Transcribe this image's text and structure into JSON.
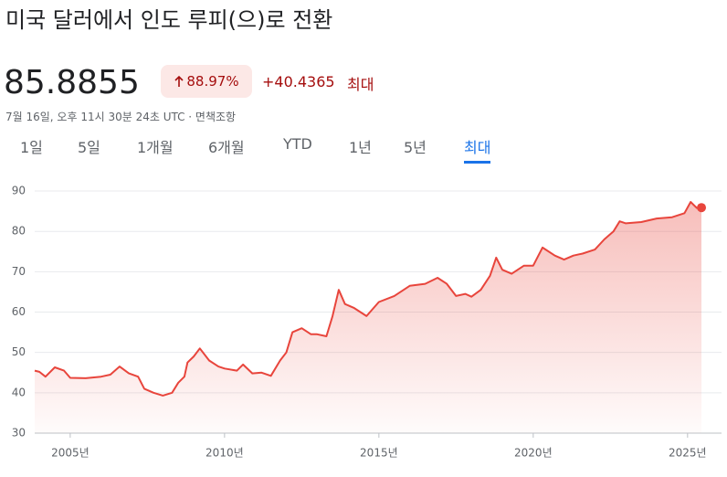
{
  "header": {
    "title": "미국 달러에서 인도 루피(으)로 전환",
    "price": "85.8855",
    "percent_change": "88.97%",
    "abs_change": "+40.4365",
    "range_label": "최대",
    "timestamp": "7월 16일, 오후 11시 30분 24초 UTC · 면책조항"
  },
  "tabs": [
    "1일",
    "5일",
    "1개월",
    "6개월",
    "YTD",
    "1년",
    "5년",
    "최대"
  ],
  "active_tab": 7,
  "chart_data": {
    "type": "area",
    "color": "#e8453c",
    "grid": true,
    "x": [
      2003.85,
      2004.0,
      2004.2,
      2004.5,
      2004.8,
      2005.0,
      2005.5,
      2006.0,
      2006.3,
      2006.6,
      2006.9,
      2007.2,
      2007.4,
      2007.7,
      2008.0,
      2008.3,
      2008.5,
      2008.7,
      2008.8,
      2009.0,
      2009.2,
      2009.5,
      2009.8,
      2010.0,
      2010.4,
      2010.6,
      2010.9,
      2011.2,
      2011.5,
      2011.8,
      2012.0,
      2012.2,
      2012.5,
      2012.8,
      2013.0,
      2013.3,
      2013.5,
      2013.7,
      2013.9,
      2014.2,
      2014.6,
      2015.0,
      2015.5,
      2016.0,
      2016.5,
      2016.9,
      2017.2,
      2017.5,
      2017.8,
      2018.0,
      2018.3,
      2018.6,
      2018.8,
      2019.0,
      2019.3,
      2019.7,
      2020.0,
      2020.3,
      2020.7,
      2021.0,
      2021.3,
      2021.6,
      2022.0,
      2022.3,
      2022.6,
      2022.8,
      2023.0,
      2023.5,
      2024.0,
      2024.5,
      2024.9,
      2025.1,
      2025.3,
      2025.45
    ],
    "values": [
      45.5,
      45.2,
      44.0,
      46.3,
      45.5,
      43.7,
      43.6,
      44.0,
      44.5,
      46.5,
      44.8,
      44.0,
      41.0,
      40.0,
      39.3,
      40.0,
      42.5,
      44.0,
      47.5,
      49.0,
      51.0,
      48.0,
      46.5,
      46.0,
      45.5,
      47.0,
      44.8,
      45.0,
      44.2,
      48.0,
      50.0,
      55.0,
      56.0,
      54.5,
      54.5,
      54.0,
      59.0,
      65.5,
      62.0,
      61.0,
      59.0,
      62.5,
      64.0,
      66.5,
      67.0,
      68.5,
      67.0,
      64.0,
      64.5,
      63.8,
      65.5,
      69.0,
      73.5,
      70.5,
      69.5,
      71.5,
      71.5,
      76.0,
      74.0,
      73.0,
      74.0,
      74.5,
      75.5,
      78.0,
      80.0,
      82.5,
      82.0,
      82.3,
      83.2,
      83.5,
      84.5,
      87.3,
      85.8,
      85.8855
    ],
    "xlim": [
      2003.85,
      2026.1
    ],
    "ylim": [
      30,
      92.5
    ],
    "yticks": [
      30,
      40,
      50,
      60,
      70,
      80,
      90
    ],
    "xticks": [
      {
        "value": 2005,
        "label": "2005년"
      },
      {
        "value": 2010,
        "label": "2010년"
      },
      {
        "value": 2015,
        "label": "2015년"
      },
      {
        "value": 2020,
        "label": "2020년"
      },
      {
        "value": 2025,
        "label": "2025년"
      }
    ]
  }
}
